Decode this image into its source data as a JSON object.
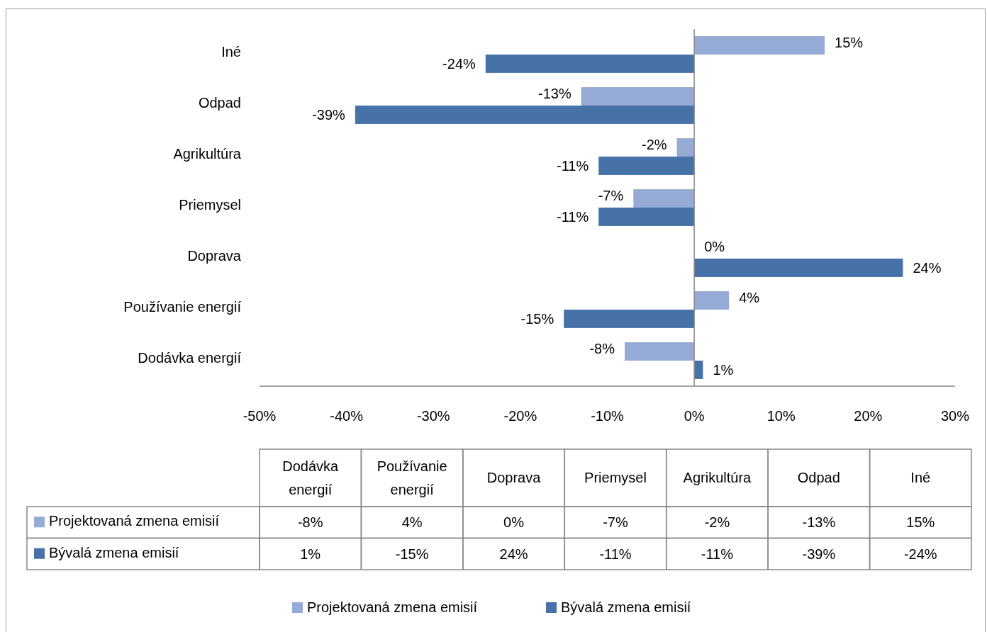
{
  "chart_data": {
    "type": "bar",
    "orientation": "horizontal",
    "categories": [
      "Iné",
      "Odpad",
      "Agrikultúra",
      "Priemysel",
      "Doprava",
      "Používanie energií",
      "Dodávka energií"
    ],
    "series": [
      {
        "name": "Projektovaná zmena emisií",
        "color": "#95abd6",
        "values": [
          15,
          -13,
          -2,
          -7,
          0,
          4,
          -8
        ],
        "value_labels": [
          "15%",
          "-13%",
          "-2%",
          "-7%",
          "0%",
          "4%",
          "-8%"
        ]
      },
      {
        "name": "Bývalá zmena emisií",
        "color": "#4672a8",
        "values": [
          -24,
          -39,
          -11,
          -11,
          24,
          -15,
          1
        ],
        "value_labels": [
          "-24%",
          "-39%",
          "-11%",
          "-11%",
          "24%",
          "-15%",
          "1%"
        ]
      }
    ],
    "xlim": [
      -50,
      30
    ],
    "xticks": [
      {
        "value": -50,
        "label": "-50%"
      },
      {
        "value": -40,
        "label": "-40%"
      },
      {
        "value": -30,
        "label": "-30%"
      },
      {
        "value": -20,
        "label": "-20%"
      },
      {
        "value": -10,
        "label": "-10%"
      },
      {
        "value": 0,
        "label": "0%"
      },
      {
        "value": 10,
        "label": "10%"
      },
      {
        "value": 20,
        "label": "20%"
      },
      {
        "value": 30,
        "label": "30%"
      }
    ],
    "legend": "bottom"
  }
}
